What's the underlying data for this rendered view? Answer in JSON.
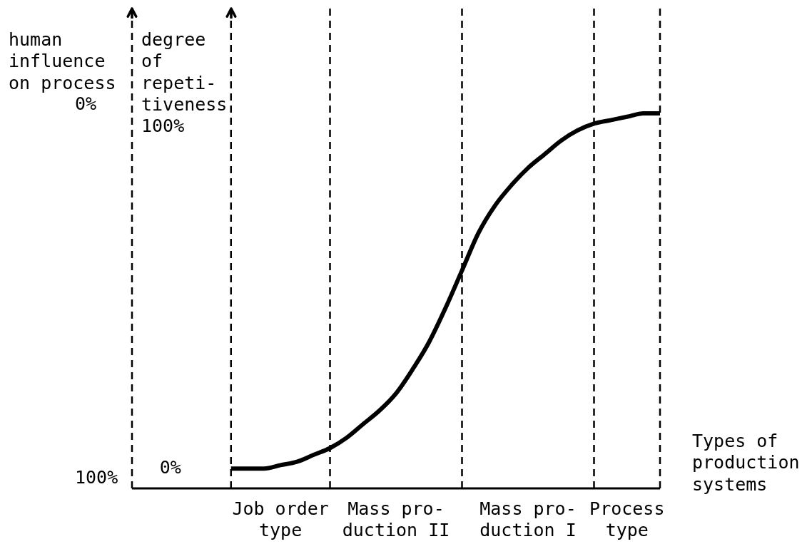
{
  "chart_data": {
    "type": "line",
    "xlabel": "Types of\nproduction\nsystems",
    "ylabel": "degree\nof\nrepeti-\ntiveness",
    "y2label": "human\ninfluence\non process",
    "categories": [
      null,
      null,
      null,
      null,
      null,
      null,
      null,
      null,
      null,
      "Job order\ntype",
      null,
      null,
      null,
      null,
      null,
      null,
      "Mass pro-\nduction II",
      null,
      null,
      null,
      null,
      null,
      null,
      null,
      "Mass pro-\nduction I",
      null,
      null,
      null,
      null,
      null,
      "Process\ntype",
      null,
      null
    ],
    "ylim": [
      -5.8,
      135.1
    ],
    "yticks": [
      {
        "value": 0,
        "label": "0%"
      },
      {
        "value": 100,
        "label": "100%"
      }
    ],
    "y2lim": [
      102.5,
      -26.3
    ],
    "y2ticks": [
      {
        "value": 100,
        "label": "100%"
      },
      {
        "value": 0,
        "label": "0%"
      }
    ],
    "series": [
      {
        "color": "#000000",
        "values": [
          null,
          null,
          null,
          null,
          null,
          null,
          0,
          0,
          0,
          1,
          2,
          4,
          6,
          9,
          13,
          17,
          22,
          29,
          37,
          47,
          58,
          69,
          77,
          83,
          88,
          92,
          96,
          99,
          101,
          102,
          103,
          104,
          104
        ]
      }
    ],
    "grid": "x"
  }
}
